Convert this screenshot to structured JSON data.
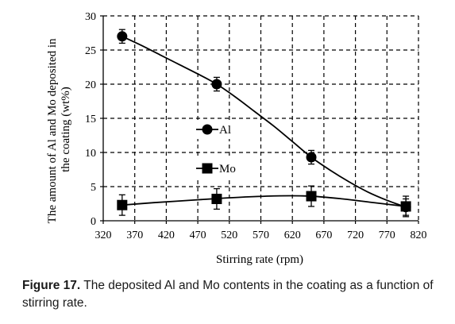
{
  "chart_data": {
    "type": "line",
    "xlabel": "Stirring rate (rpm)",
    "ylabel": "The amount of Al and Mo deposited in the coating (wt%)",
    "ylabel_lines": [
      "The amount of Al and Mo deposited in",
      "the coating (wt%)"
    ],
    "xlim": [
      320,
      820
    ],
    "ylim": [
      0,
      30
    ],
    "xticks": [
      320,
      370,
      420,
      470,
      520,
      570,
      620,
      670,
      720,
      770,
      820
    ],
    "yticks": [
      0,
      5,
      10,
      15,
      20,
      25,
      30
    ],
    "grid": true,
    "legend_placement": "center-left",
    "series": [
      {
        "name": "Al",
        "marker": "circle",
        "x": [
          350,
          500,
          650,
          800
        ],
        "y": [
          27.0,
          20.0,
          9.3,
          2.0
        ],
        "error": [
          1.0,
          1.0,
          1.0,
          1.2
        ],
        "curve": [
          [
            350,
            27.0
          ],
          [
            380,
            25.7
          ],
          [
            410,
            24.3
          ],
          [
            440,
            22.9
          ],
          [
            470,
            21.5
          ],
          [
            500,
            20.0
          ],
          [
            530,
            18.1
          ],
          [
            560,
            16.0
          ],
          [
            590,
            13.9
          ],
          [
            620,
            11.6
          ],
          [
            650,
            9.3
          ],
          [
            680,
            7.4
          ],
          [
            710,
            5.7
          ],
          [
            740,
            4.2
          ],
          [
            770,
            3.0
          ],
          [
            800,
            2.0
          ]
        ]
      },
      {
        "name": "Mo",
        "marker": "square",
        "x": [
          350,
          500,
          650,
          800
        ],
        "y": [
          2.3,
          3.2,
          3.6,
          2.1
        ],
        "error": [
          1.5,
          1.5,
          1.5,
          1.5
        ],
        "curve": [
          [
            350,
            2.3
          ],
          [
            400,
            2.65
          ],
          [
            450,
            2.95
          ],
          [
            500,
            3.25
          ],
          [
            550,
            3.5
          ],
          [
            600,
            3.65
          ],
          [
            650,
            3.6
          ],
          [
            700,
            3.2
          ],
          [
            750,
            2.65
          ],
          [
            800,
            2.1
          ]
        ]
      }
    ]
  },
  "caption": {
    "label": "Figure 17.",
    "text": " The deposited Al and Mo contents in the coating as a function of stirring rate."
  }
}
